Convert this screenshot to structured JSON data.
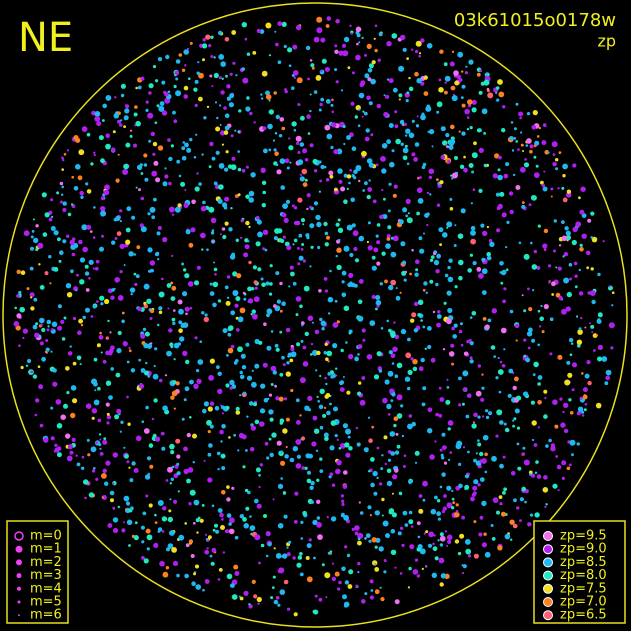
{
  "header": {
    "label": "NE",
    "frame_id": "03k61015o0178w",
    "subtitle": "zp"
  },
  "magnitude_legend": [
    "m=0",
    "m=1",
    "m=2",
    "m=3",
    "m=4",
    "m=5",
    "m=6"
  ],
  "zp_legend": [
    {
      "label": "zp=9.5",
      "color": "#f070f0"
    },
    {
      "label": "zp=9.0",
      "color": "#b020f0"
    },
    {
      "label": "zp=8.5",
      "color": "#20b8f0"
    },
    {
      "label": "zp=8.0",
      "color": "#20e8c0"
    },
    {
      "label": "zp=7.5",
      "color": "#f0e020"
    },
    {
      "label": "zp=7.0",
      "color": "#ff8020"
    },
    {
      "label": "zp=6.5",
      "color": "#ff6070"
    }
  ]
}
